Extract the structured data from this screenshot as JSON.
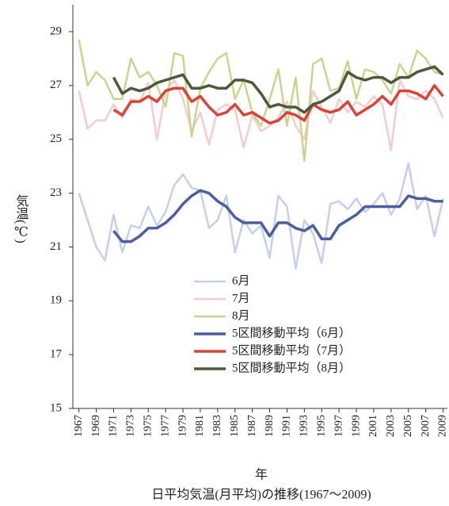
{
  "chart_data": {
    "type": "line",
    "title": "日平均気温(月平均)の推移(1967～2009)",
    "x_label": "年",
    "y_label": "気温(℃)",
    "x": [
      1967,
      1968,
      1969,
      1970,
      1971,
      1972,
      1973,
      1974,
      1975,
      1976,
      1977,
      1978,
      1979,
      1980,
      1981,
      1982,
      1983,
      1984,
      1985,
      1986,
      1987,
      1988,
      1989,
      1990,
      1991,
      1992,
      1993,
      1994,
      1995,
      1996,
      1997,
      1998,
      1999,
      2000,
      2001,
      2002,
      2003,
      2004,
      2005,
      2006,
      2007,
      2008,
      2009
    ],
    "xlim": [
      1966.3,
      2009.5
    ],
    "xticks": [
      1967,
      1969,
      1971,
      1973,
      1975,
      1977,
      1979,
      1981,
      1983,
      1985,
      1987,
      1989,
      1991,
      1993,
      1995,
      1997,
      1999,
      2001,
      2003,
      2005,
      2007,
      2009
    ],
    "ylim": [
      15,
      30
    ],
    "yticks": [
      15,
      17,
      19,
      21,
      23,
      25,
      27,
      29
    ],
    "legend": "lower center",
    "series": [
      {
        "name": "6月",
        "color": "#c6cfe8",
        "values": [
          23.0,
          22.0,
          21.0,
          20.5,
          22.2,
          20.8,
          21.8,
          21.7,
          22.5,
          21.8,
          22.3,
          23.3,
          23.7,
          23.2,
          23.1,
          21.7,
          22.0,
          22.9,
          20.8,
          22.0,
          21.5,
          21.8,
          20.6,
          22.9,
          22.5,
          20.2,
          22.0,
          21.5,
          20.4,
          22.6,
          22.7,
          22.4,
          22.8,
          22.3,
          22.6,
          23.0,
          22.2,
          22.8,
          24.1,
          22.4,
          22.9,
          21.4,
          22.8
        ]
      },
      {
        "name": "7月",
        "color": "#f3cccb",
        "values": [
          26.8,
          25.4,
          25.7,
          25.7,
          26.3,
          25.8,
          26.5,
          26.4,
          27.1,
          25.0,
          26.8,
          27.2,
          26.5,
          25.3,
          26.0,
          24.8,
          26.1,
          26.3,
          26.1,
          24.7,
          25.9,
          25.3,
          25.5,
          25.8,
          26.4,
          25.5,
          25.0,
          26.8,
          26.2,
          25.6,
          26.5,
          26.0,
          26.4,
          26.2,
          26.6,
          26.3,
          24.6,
          27.2,
          26.6,
          26.5,
          26.8,
          26.5,
          25.8
        ]
      },
      {
        "name": "8月",
        "color": "#c8d58f",
        "values": [
          28.7,
          27.0,
          27.5,
          27.2,
          26.5,
          26.5,
          28.0,
          27.3,
          27.5,
          27.0,
          26.2,
          28.2,
          28.1,
          25.1,
          26.9,
          27.5,
          28.0,
          28.2,
          26.5,
          27.2,
          26.0,
          25.5,
          26.5,
          27.6,
          25.5,
          27.3,
          24.2,
          27.8,
          28.0,
          26.8,
          26.9,
          27.9,
          26.5,
          27.6,
          27.5,
          27.2,
          26.7,
          27.8,
          27.3,
          28.3,
          28.0,
          27.5,
          27.4
        ]
      },
      {
        "name": "5区間移動平均（6月）",
        "color": "#4a5f9e",
        "values": [
          null,
          null,
          null,
          null,
          21.6,
          21.2,
          21.2,
          21.4,
          21.7,
          21.7,
          21.9,
          22.2,
          22.6,
          22.9,
          23.1,
          23.0,
          22.7,
          22.5,
          22.1,
          21.9,
          21.9,
          21.9,
          21.4,
          21.9,
          21.9,
          21.7,
          21.6,
          21.8,
          21.3,
          21.3,
          21.8,
          22.0,
          22.2,
          22.5,
          22.5,
          22.5,
          22.5,
          22.5,
          22.9,
          22.8,
          22.8,
          22.7,
          22.7
        ]
      },
      {
        "name": "5区間移動平均（7月）",
        "color": "#d9433a",
        "values": [
          null,
          null,
          null,
          null,
          26.1,
          25.9,
          26.4,
          26.4,
          26.6,
          26.4,
          26.8,
          26.9,
          26.9,
          26.4,
          26.6,
          26.2,
          25.9,
          26.0,
          26.3,
          25.9,
          26.0,
          25.8,
          25.6,
          25.7,
          26.0,
          25.9,
          25.7,
          26.3,
          26.1,
          26.0,
          26.1,
          26.4,
          25.9,
          26.1,
          26.3,
          26.6,
          26.3,
          26.8,
          26.8,
          26.7,
          26.5,
          27.0,
          26.6
        ]
      },
      {
        "name": "5区間移動平均（8月）",
        "color": "#4b5a3c",
        "values": [
          null,
          null,
          null,
          null,
          27.3,
          26.7,
          26.9,
          26.8,
          26.9,
          27.1,
          27.2,
          27.3,
          27.4,
          26.9,
          26.9,
          27.0,
          26.9,
          26.9,
          27.2,
          27.2,
          27.1,
          26.7,
          26.2,
          26.3,
          26.2,
          26.2,
          26.0,
          26.3,
          26.4,
          26.6,
          26.8,
          27.5,
          27.3,
          27.2,
          27.3,
          27.3,
          27.1,
          27.3,
          27.3,
          27.5,
          27.6,
          27.7,
          27.4
        ]
      }
    ]
  }
}
